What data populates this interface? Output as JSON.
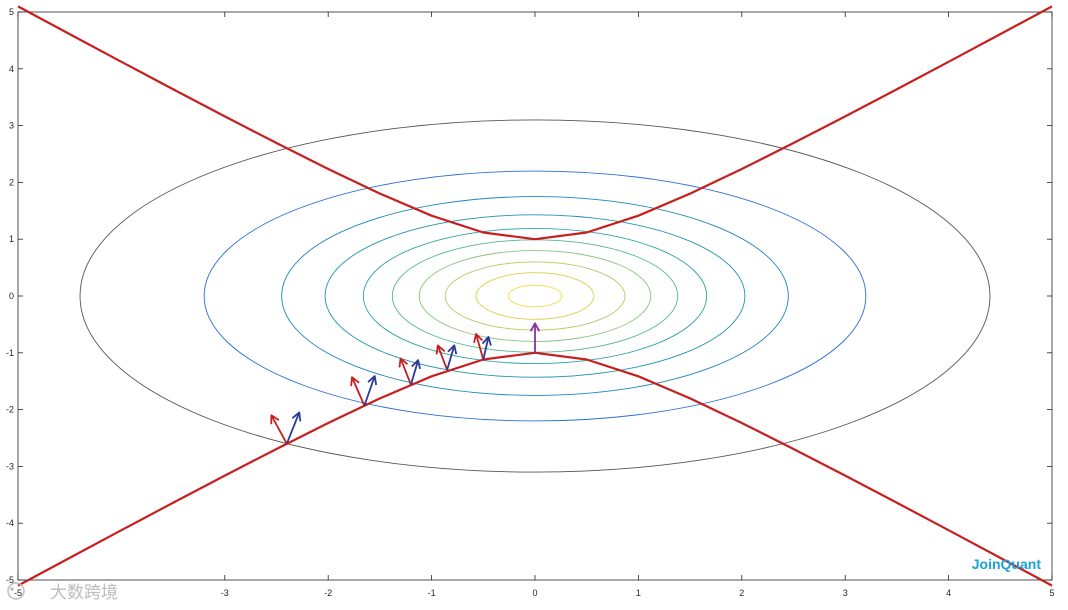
{
  "chart_data": {
    "type": "line",
    "title": "",
    "xlabel": "",
    "ylabel": "",
    "xlim": [
      -5,
      5
    ],
    "ylim": [
      -5,
      5
    ],
    "grid": false,
    "x_ticks": [
      -5,
      -3,
      -2,
      -1,
      0,
      1,
      2,
      3,
      4,
      5
    ],
    "y_ticks": [
      -5,
      -4,
      -3,
      -2,
      -1,
      0,
      1,
      2,
      3,
      4,
      5
    ],
    "x_tick_labels": [
      "-5",
      "-3",
      "-2",
      "-1",
      "0",
      "1",
      "2",
      "3",
      "4",
      "5"
    ],
    "y_tick_labels": [
      "-5",
      "-4",
      "-3",
      "-2",
      "-1",
      "0",
      "1",
      "2",
      "3",
      "4",
      "5"
    ],
    "contours": {
      "center": [
        0,
        0
      ],
      "semi_axes": [
        [
          4.4,
          3.1
        ],
        [
          3.2,
          2.2
        ],
        [
          2.45,
          1.75
        ],
        [
          2.03,
          1.43
        ],
        [
          1.66,
          1.19
        ],
        [
          1.38,
          0.99
        ],
        [
          1.12,
          0.8
        ],
        [
          0.87,
          0.6
        ],
        [
          0.57,
          0.41
        ],
        [
          0.26,
          0.19
        ]
      ],
      "colors": [
        "#555555",
        "#2a6fd6",
        "#1f86c0",
        "#2192b0",
        "#2ea6a0",
        "#4fb890",
        "#8ec27a",
        "#b9c766",
        "#d6cf4c",
        "#f0dd3a"
      ]
    },
    "series": [
      {
        "x": [
          -5,
          -4.5,
          -4,
          -3.5,
          -3,
          -2.5,
          -2,
          -1.5,
          -1,
          -0.5,
          0,
          0.5,
          1,
          1.5,
          2,
          2.5,
          3,
          3.5,
          4,
          4.5,
          5
        ],
        "y": [
          5.099,
          4.61,
          4.123,
          3.64,
          3.162,
          2.693,
          2.236,
          1.803,
          1.414,
          1.118,
          1,
          1.118,
          1.414,
          1.803,
          2.236,
          2.693,
          3.162,
          3.64,
          4.123,
          4.61,
          5.099
        ],
        "color": "#c81e1e"
      },
      {
        "x": [
          -5,
          -4.5,
          -4,
          -3.5,
          -3,
          -2.5,
          -2,
          -1.5,
          -1,
          -0.5,
          0,
          0.5,
          1,
          1.5,
          2,
          2.5,
          3,
          3.5,
          4,
          4.5,
          5
        ],
        "y": [
          -5.099,
          -4.61,
          -4.123,
          -3.64,
          -3.162,
          -2.693,
          -2.236,
          -1.803,
          -1.414,
          -1.118,
          -1,
          -1.118,
          -1.414,
          -1.803,
          -2.236,
          -2.693,
          -3.162,
          -3.64,
          -4.123,
          -4.61,
          -5.099
        ],
        "color": "#c81e1e"
      }
    ],
    "arrows": [
      {
        "x": -2.4,
        "y": -2.6,
        "dx": -0.15,
        "dy": 0.5,
        "color": "#c81e1e"
      },
      {
        "x": -2.4,
        "y": -2.6,
        "dx": 0.12,
        "dy": 0.55,
        "color": "#2b3a99"
      },
      {
        "x": -1.65,
        "y": -1.93,
        "dx": -0.12,
        "dy": 0.5,
        "color": "#c81e1e"
      },
      {
        "x": -1.65,
        "y": -1.93,
        "dx": 0.1,
        "dy": 0.52,
        "color": "#2b3a99"
      },
      {
        "x": -1.2,
        "y": -1.56,
        "dx": -0.1,
        "dy": 0.46,
        "color": "#c81e1e"
      },
      {
        "x": -1.2,
        "y": -1.56,
        "dx": 0.07,
        "dy": 0.43,
        "color": "#2b3a99"
      },
      {
        "x": -0.85,
        "y": -1.3,
        "dx": -0.09,
        "dy": 0.43,
        "color": "#c81e1e"
      },
      {
        "x": -0.85,
        "y": -1.3,
        "dx": 0.07,
        "dy": 0.43,
        "color": "#2b3a99"
      },
      {
        "x": -0.5,
        "y": -1.12,
        "dx": -0.07,
        "dy": 0.45,
        "color": "#c81e1e"
      },
      {
        "x": -0.5,
        "y": -1.12,
        "dx": 0.05,
        "dy": 0.4,
        "color": "#2b3a99"
      },
      {
        "x": 0,
        "y": -1.0,
        "dx": 0,
        "dy": 0.52,
        "color": "#8a2f9e"
      }
    ]
  },
  "brand": {
    "label": "JoinQuant"
  },
  "watermark": {
    "label": "大数跨境"
  }
}
